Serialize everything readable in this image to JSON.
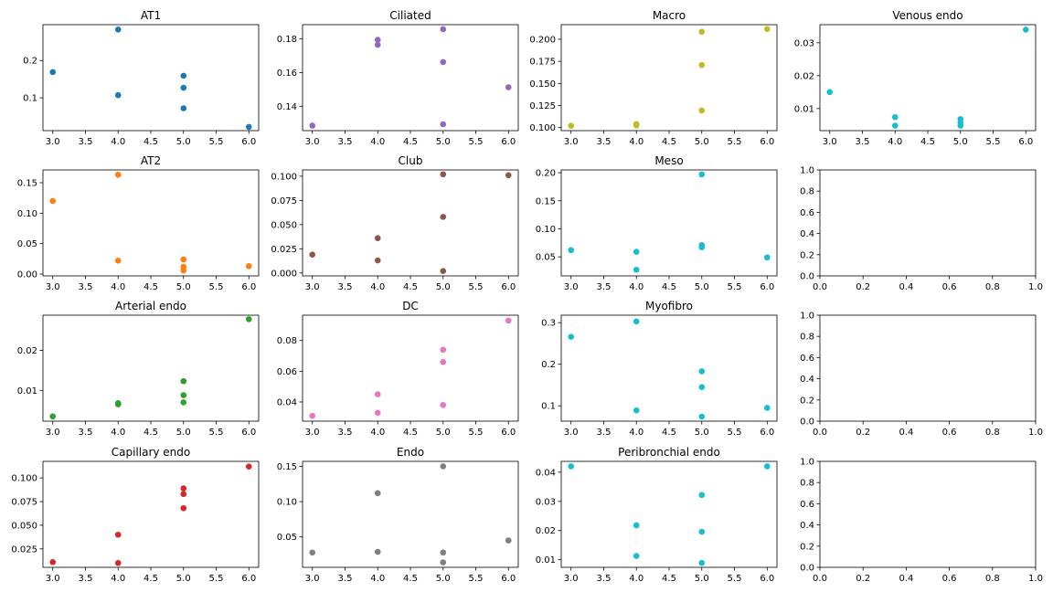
{
  "chart_data": [
    {
      "type": "scatter",
      "title": "AT1",
      "color": "#1f77b4",
      "xlim": [
        2.85,
        6.15
      ],
      "ylim": [
        0.012,
        0.296
      ],
      "xticks": [
        3.0,
        3.5,
        4.0,
        4.5,
        5.0,
        5.5,
        6.0
      ],
      "xtick_labels": [
        "3.0",
        "3.5",
        "4.0",
        "4.5",
        "5.0",
        "5.5",
        "6.0"
      ],
      "yticks": [
        0.1,
        0.2
      ],
      "ytick_labels": [
        "0.1",
        "0.2"
      ],
      "x": [
        3,
        4,
        4,
        5,
        5,
        5,
        6
      ],
      "y": [
        0.169,
        0.283,
        0.107,
        0.159,
        0.127,
        0.072,
        0.022
      ]
    },
    {
      "type": "scatter",
      "title": "Ciliated",
      "color": "#9467bd",
      "xlim": [
        2.85,
        6.15
      ],
      "ylim": [
        0.1255,
        0.1885
      ],
      "xticks": [
        3.0,
        3.5,
        4.0,
        4.5,
        5.0,
        5.5,
        6.0
      ],
      "xtick_labels": [
        "3.0",
        "3.5",
        "4.0",
        "4.5",
        "5.0",
        "5.5",
        "6.0"
      ],
      "yticks": [
        0.14,
        0.16,
        0.18
      ],
      "ytick_labels": [
        "0.14",
        "0.16",
        "0.18"
      ],
      "x": [
        3,
        4,
        4,
        5,
        5,
        5,
        6
      ],
      "y": [
        0.1285,
        0.1795,
        0.1765,
        0.1858,
        0.1663,
        0.1293,
        0.1513
      ]
    },
    {
      "type": "scatter",
      "title": "Macro",
      "color": "#bcbd22",
      "xlim": [
        2.85,
        6.15
      ],
      "ylim": [
        0.0965,
        0.2165
      ],
      "xticks": [
        3.0,
        3.5,
        4.0,
        4.5,
        5.0,
        5.5,
        6.0
      ],
      "xtick_labels": [
        "3.0",
        "3.5",
        "4.0",
        "4.5",
        "5.0",
        "5.5",
        "6.0"
      ],
      "yticks": [
        0.1,
        0.125,
        0.15,
        0.175,
        0.2
      ],
      "ytick_labels": [
        "0.100",
        "0.125",
        "0.150",
        "0.175",
        "0.200"
      ],
      "x": [
        3,
        4,
        4,
        5,
        5,
        5,
        6
      ],
      "y": [
        0.102,
        0.104,
        0.1025,
        0.2085,
        0.1708,
        0.1193,
        0.2115
      ]
    },
    {
      "type": "scatter",
      "title": "Venous endo",
      "color": "#17becf",
      "xlim": [
        2.85,
        6.15
      ],
      "ylim": [
        0.0033,
        0.0355
      ],
      "xticks": [
        3.0,
        3.5,
        4.0,
        4.5,
        5.0,
        5.5,
        6.0
      ],
      "xtick_labels": [
        "3.0",
        "3.5",
        "4.0",
        "4.5",
        "5.0",
        "5.5",
        "6.0"
      ],
      "yticks": [
        0.01,
        0.02,
        0.03
      ],
      "ytick_labels": [
        "0.01",
        "0.02",
        "0.03"
      ],
      "x": [
        3,
        4,
        4,
        5,
        5,
        5,
        6
      ],
      "y": [
        0.015,
        0.0074,
        0.0048,
        0.0068,
        0.0058,
        0.0048,
        0.034
      ]
    },
    {
      "type": "scatter",
      "title": "AT2",
      "color": "#ff7f0e",
      "xlim": [
        2.85,
        6.15
      ],
      "ylim": [
        -0.003,
        0.171
      ],
      "xticks": [
        3.0,
        3.5,
        4.0,
        4.5,
        5.0,
        5.5,
        6.0
      ],
      "xtick_labels": [
        "3.0",
        "3.5",
        "4.0",
        "4.5",
        "5.0",
        "5.5",
        "6.0"
      ],
      "yticks": [
        0.0,
        0.05,
        0.1,
        0.15
      ],
      "ytick_labels": [
        "0.00",
        "0.05",
        "0.10",
        "0.15"
      ],
      "x": [
        3,
        4,
        4,
        5,
        5,
        5,
        6
      ],
      "y": [
        0.12,
        0.163,
        0.022,
        0.024,
        0.012,
        0.006,
        0.013
      ]
    },
    {
      "type": "scatter",
      "title": "Club",
      "color": "#8c564b",
      "xlim": [
        2.85,
        6.15
      ],
      "ylim": [
        -0.003,
        0.1065
      ],
      "xticks": [
        3.0,
        3.5,
        4.0,
        4.5,
        5.0,
        5.5,
        6.0
      ],
      "xtick_labels": [
        "3.0",
        "3.5",
        "4.0",
        "4.5",
        "5.0",
        "5.5",
        "6.0"
      ],
      "yticks": [
        0.0,
        0.025,
        0.05,
        0.075,
        0.1
      ],
      "ytick_labels": [
        "0.000",
        "0.025",
        "0.050",
        "0.075",
        "0.100"
      ],
      "x": [
        3,
        4,
        4,
        5,
        5,
        5,
        6
      ],
      "y": [
        0.019,
        0.036,
        0.013,
        0.102,
        0.058,
        0.002,
        0.101
      ]
    },
    {
      "type": "scatter",
      "title": "Meso",
      "color": "#17becf",
      "xlim": [
        2.85,
        6.15
      ],
      "ylim": [
        0.016,
        0.205
      ],
      "xticks": [
        3.0,
        3.5,
        4.0,
        4.5,
        5.0,
        5.5,
        6.0
      ],
      "xtick_labels": [
        "3.0",
        "3.5",
        "4.0",
        "4.5",
        "5.0",
        "5.5",
        "6.0"
      ],
      "yticks": [
        0.05,
        0.1,
        0.15,
        0.2
      ],
      "ytick_labels": [
        "0.05",
        "0.10",
        "0.15",
        "0.20"
      ],
      "x": [
        3,
        4,
        4,
        5,
        5,
        5,
        6
      ],
      "y": [
        0.062,
        0.059,
        0.027,
        0.197,
        0.071,
        0.067,
        0.049
      ]
    },
    {
      "type": "scatter",
      "title": "",
      "empty": true,
      "xlim": [
        0,
        1
      ],
      "ylim": [
        0,
        1
      ],
      "xticks": [
        0.0,
        0.2,
        0.4,
        0.6,
        0.8,
        1.0
      ],
      "xtick_labels": [
        "0.0",
        "0.2",
        "0.4",
        "0.6",
        "0.8",
        "1.0"
      ],
      "yticks": [
        0.0,
        0.2,
        0.4,
        0.6,
        0.8,
        1.0
      ],
      "ytick_labels": [
        "0.0",
        "0.2",
        "0.4",
        "0.6",
        "0.8",
        "1.0"
      ],
      "x": [],
      "y": []
    },
    {
      "type": "scatter",
      "title": "Arterial endo",
      "color": "#2ca02c",
      "xlim": [
        2.85,
        6.15
      ],
      "ylim": [
        0.0023,
        0.0288
      ],
      "xticks": [
        3.0,
        3.5,
        4.0,
        4.5,
        5.0,
        5.5,
        6.0
      ],
      "xtick_labels": [
        "3.0",
        "3.5",
        "4.0",
        "4.5",
        "5.0",
        "5.5",
        "6.0"
      ],
      "yticks": [
        0.01,
        0.02
      ],
      "ytick_labels": [
        "0.01",
        "0.02"
      ],
      "x": [
        3,
        4,
        4,
        5,
        5,
        5,
        6
      ],
      "y": [
        0.0035,
        0.0068,
        0.0065,
        0.0123,
        0.0088,
        0.007,
        0.0278
      ]
    },
    {
      "type": "scatter",
      "title": "DC",
      "color": "#e377c2",
      "xlim": [
        2.85,
        6.15
      ],
      "ylim": [
        0.0275,
        0.0965
      ],
      "xticks": [
        3.0,
        3.5,
        4.0,
        4.5,
        5.0,
        5.5,
        6.0
      ],
      "xtick_labels": [
        "3.0",
        "3.5",
        "4.0",
        "4.5",
        "5.0",
        "5.5",
        "6.0"
      ],
      "yticks": [
        0.04,
        0.06,
        0.08
      ],
      "ytick_labels": [
        "0.04",
        "0.06",
        "0.08"
      ],
      "x": [
        3,
        4,
        4,
        5,
        5,
        5,
        6
      ],
      "y": [
        0.031,
        0.033,
        0.045,
        0.074,
        0.066,
        0.038,
        0.093
      ]
    },
    {
      "type": "scatter",
      "title": "Myofibro",
      "color": "#17becf",
      "xlim": [
        2.85,
        6.15
      ],
      "ylim": [
        0.063,
        0.318
      ],
      "xticks": [
        3.0,
        3.5,
        4.0,
        4.5,
        5.0,
        5.5,
        6.0
      ],
      "xtick_labels": [
        "3.0",
        "3.5",
        "4.0",
        "4.5",
        "5.0",
        "5.5",
        "6.0"
      ],
      "yticks": [
        0.1,
        0.2,
        0.3
      ],
      "ytick_labels": [
        "0.1",
        "0.2",
        "0.3"
      ],
      "x": [
        3,
        4,
        4,
        5,
        5,
        5,
        6
      ],
      "y": [
        0.266,
        0.303,
        0.089,
        0.183,
        0.145,
        0.074,
        0.095
      ]
    },
    {
      "type": "scatter",
      "title": "",
      "empty": true,
      "xlim": [
        0,
        1
      ],
      "ylim": [
        0,
        1
      ],
      "xticks": [
        0.0,
        0.2,
        0.4,
        0.6,
        0.8,
        1.0
      ],
      "xtick_labels": [
        "0.0",
        "0.2",
        "0.4",
        "0.6",
        "0.8",
        "1.0"
      ],
      "yticks": [
        0.0,
        0.2,
        0.4,
        0.6,
        0.8,
        1.0
      ],
      "ytick_labels": [
        "0.0",
        "0.2",
        "0.4",
        "0.6",
        "0.8",
        "1.0"
      ],
      "x": [],
      "y": []
    },
    {
      "type": "scatter",
      "title": "Capillary endo",
      "color": "#d62728",
      "xlim": [
        2.85,
        6.15
      ],
      "ylim": [
        0.0055,
        0.1175
      ],
      "xticks": [
        3.0,
        3.5,
        4.0,
        4.5,
        5.0,
        5.5,
        6.0
      ],
      "xtick_labels": [
        "3.0",
        "3.5",
        "4.0",
        "4.5",
        "5.0",
        "5.5",
        "6.0"
      ],
      "yticks": [
        0.025,
        0.05,
        0.075,
        0.1
      ],
      "ytick_labels": [
        "0.025",
        "0.050",
        "0.075",
        "0.100"
      ],
      "x": [
        3,
        4,
        4,
        5,
        5,
        5,
        6
      ],
      "y": [
        0.011,
        0.04,
        0.01,
        0.089,
        0.083,
        0.068,
        0.112
      ]
    },
    {
      "type": "scatter",
      "title": "Endo",
      "color": "#7f7f7f",
      "xlim": [
        2.85,
        6.15
      ],
      "ylim": [
        0.007,
        0.157
      ],
      "xticks": [
        3.0,
        3.5,
        4.0,
        4.5,
        5.0,
        5.5,
        6.0
      ],
      "xtick_labels": [
        "3.0",
        "3.5",
        "4.0",
        "4.5",
        "5.0",
        "5.5",
        "6.0"
      ],
      "yticks": [
        0.05,
        0.1,
        0.15
      ],
      "ytick_labels": [
        "0.05",
        "0.10",
        "0.15"
      ],
      "x": [
        3,
        4,
        4,
        5,
        5,
        5,
        6
      ],
      "y": [
        0.028,
        0.112,
        0.029,
        0.15,
        0.028,
        0.014,
        0.045
      ]
    },
    {
      "type": "scatter",
      "title": "Peribronchial endo",
      "color": "#17becf",
      "xlim": [
        2.85,
        6.15
      ],
      "ylim": [
        0.0074,
        0.0437
      ],
      "xticks": [
        3.0,
        3.5,
        4.0,
        4.5,
        5.0,
        5.5,
        6.0
      ],
      "xtick_labels": [
        "3.0",
        "3.5",
        "4.0",
        "4.5",
        "5.0",
        "5.5",
        "6.0"
      ],
      "yticks": [
        0.01,
        0.02,
        0.03,
        0.04
      ],
      "ytick_labels": [
        "0.01",
        "0.02",
        "0.03",
        "0.04"
      ],
      "x": [
        3,
        4,
        4,
        5,
        5,
        5,
        6
      ],
      "y": [
        0.042,
        0.0218,
        0.0113,
        0.0322,
        0.0196,
        0.0089,
        0.042
      ]
    },
    {
      "type": "scatter",
      "title": "",
      "empty": true,
      "xlim": [
        0,
        1
      ],
      "ylim": [
        0,
        1
      ],
      "xticks": [
        0.0,
        0.2,
        0.4,
        0.6,
        0.8,
        1.0
      ],
      "xtick_labels": [
        "0.0",
        "0.2",
        "0.4",
        "0.6",
        "0.8",
        "1.0"
      ],
      "yticks": [
        0.0,
        0.2,
        0.4,
        0.6,
        0.8,
        1.0
      ],
      "ytick_labels": [
        "0.0",
        "0.2",
        "0.4",
        "0.6",
        "0.8",
        "1.0"
      ],
      "x": [],
      "y": []
    }
  ]
}
